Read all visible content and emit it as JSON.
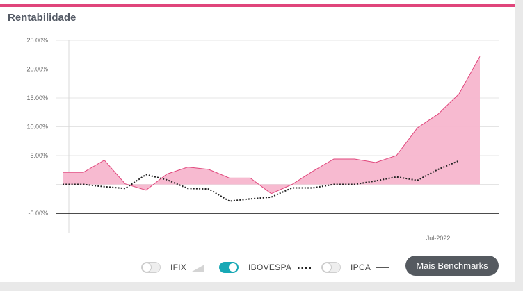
{
  "card": {
    "title": "Rentabilidade"
  },
  "colors": {
    "accent": "#e0457b",
    "area_fill": "#f7b6cd",
    "area_stroke": "#e0457b",
    "ibovespa": "#222222",
    "ipca": "#222222",
    "toggle_on": "#17a8b5"
  },
  "legend": [
    {
      "label": "IFIX",
      "enabled": false,
      "style": "area"
    },
    {
      "label": "IBOVESPA",
      "enabled": true,
      "style": "dotted"
    },
    {
      "label": "IPCA",
      "enabled": false,
      "style": "solid"
    }
  ],
  "more_button": "Mais Benchmarks",
  "chart_data": {
    "type": "area",
    "title": "Rentabilidade",
    "ylim": [
      -5,
      25
    ],
    "y_ticks": [
      "25.00%",
      "20.00%",
      "15.00%",
      "10.00%",
      "5.00%",
      "-5.00%"
    ],
    "y_tick_values": [
      25,
      20,
      15,
      10,
      5,
      -5
    ],
    "x_tick_labels": [
      "Jul-2022"
    ],
    "x_tick_indices": [
      18
    ],
    "grid": true,
    "series": [
      {
        "style": "area",
        "values": [
          2.1,
          2.1,
          4.2,
          0.1,
          -1.0,
          1.8,
          3.0,
          2.6,
          1.1,
          1.1,
          -1.6,
          0.0,
          2.3,
          4.4,
          4.4,
          3.8,
          5.0,
          9.8,
          12.2,
          15.7,
          22.2
        ]
      },
      {
        "name": "IBOVESPA",
        "style": "dotted",
        "values": [
          0.0,
          0.0,
          -0.4,
          -0.7,
          1.7,
          0.8,
          -0.7,
          -0.8,
          -2.9,
          -2.5,
          -2.2,
          -0.6,
          -0.6,
          0.0,
          0.0,
          0.6,
          1.3,
          0.7,
          2.6,
          4.1
        ]
      }
    ]
  }
}
